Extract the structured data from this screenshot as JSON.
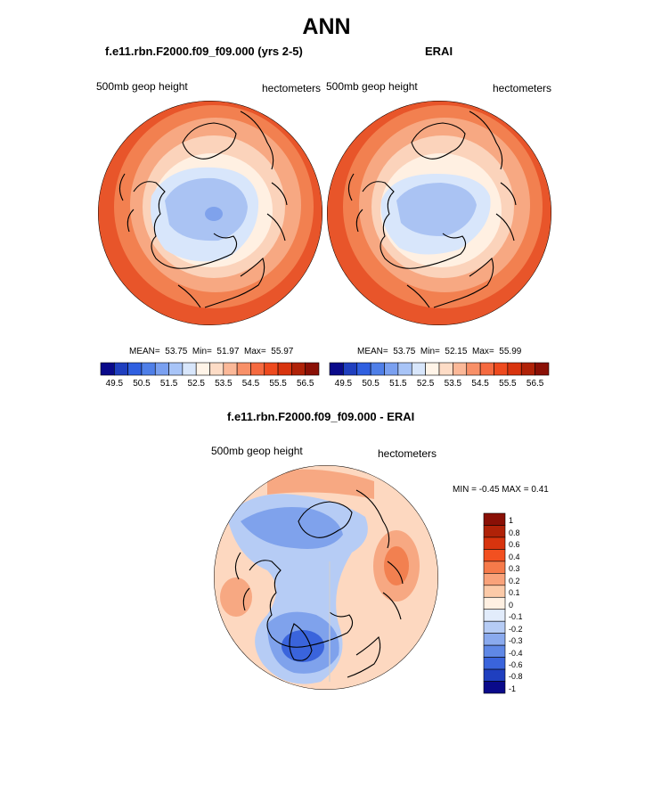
{
  "title": "ANN",
  "panels": [
    {
      "title": "f.e11.rbn.F2000.f09_f09.000 (yrs 2-5)",
      "left_label": "500mb geop height",
      "right_label": "hectometers",
      "stats": {
        "mean_label": "MEAN=",
        "mean": "53.75",
        "min_label": "Min=",
        "min": "51.97",
        "max_label": "Max=",
        "max": "55.97"
      }
    },
    {
      "title": "ERAI",
      "left_label": "500mb geop height",
      "right_label": "hectometers",
      "stats": {
        "mean_label": "MEAN=",
        "mean": "53.75",
        "min_label": "Min=",
        "min": "52.15",
        "max_label": "Max=",
        "max": "55.99"
      }
    }
  ],
  "diff_panel": {
    "title": "f.e11.rbn.F2000.f09_f09.000 - ERAI",
    "left_label": "500mb geop height",
    "right_label": "hectometers",
    "min_max_text": "MIN =  -0.45 MAX =   0.41"
  },
  "colorbar_abs": {
    "labels": [
      "49.5",
      "50.5",
      "51.5",
      "52.5",
      "53.5",
      "54.5",
      "55.5",
      "56.5"
    ],
    "colors": [
      "#0a0a8a",
      "#1f3fbf",
      "#2f5fe0",
      "#4f7fe8",
      "#7aa0f0",
      "#a8c4f7",
      "#d8e6fb",
      "#fff4e8",
      "#fddcc6",
      "#fbb898",
      "#f89068",
      "#f56a40",
      "#ee4a1e",
      "#d8340e",
      "#b02208",
      "#8a1006"
    ]
  },
  "colorbar_diff": {
    "labels": [
      "1",
      "0.8",
      "0.6",
      "0.4",
      "0.3",
      "0.2",
      "0.1",
      "0",
      "-0.1",
      "-0.2",
      "-0.3",
      "-0.4",
      "-0.6",
      "-0.8",
      "-1"
    ],
    "colors": [
      "#8a1006",
      "#b02208",
      "#d8340e",
      "#f25020",
      "#f67a4a",
      "#f9a27a",
      "#fccaa8",
      "#fff0e2",
      "#e2ecfb",
      "#b6ccf5",
      "#8aaaee",
      "#5f88e6",
      "#3a64dc",
      "#1f3fbf",
      "#0a0a8a"
    ]
  },
  "map_colors": {
    "ocean_outer": "#e8552a",
    "ring2": "#f28050",
    "ring3": "#f7a882",
    "ring4": "#fbd3bb",
    "ring5": "#fff0e2",
    "inner_light": "#d8e6fb",
    "inner_blue": "#aac3f3",
    "inner_core": "#7fa2ec",
    "coast": "#000000",
    "diff_base": "#fdd8c0",
    "diff_blue_light": "#b6ccf5",
    "diff_blue_mid": "#7fa2ec",
    "diff_blue_deep": "#3a64dc",
    "diff_red": "#f7a882",
    "diff_red_mid": "#f28050"
  }
}
